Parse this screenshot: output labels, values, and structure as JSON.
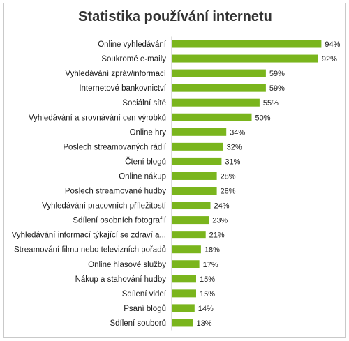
{
  "chart_data": {
    "type": "bar",
    "orientation": "horizontal",
    "title": "Statistika používání internetu",
    "categories": [
      "Online vyhledávání",
      "Soukromé e-maily",
      "Vyhledávání zpráv/informací",
      "Internetové bankovnictví",
      "Sociální sítě",
      "Vyhledávání a srovnávání cen výrobků",
      "Online hry",
      "Poslech streamovaných rádií",
      "Čtení blogů",
      "Online nákup",
      "Poslech streamované hudby",
      "Vyhledávání pracovních příležitostí",
      "Sdílení osobních fotografií",
      "Vyhledávání informací týkající se zdraví a...",
      "Streamování filmu nebo televizních pořadů",
      "Online hlasové služby",
      "Nákup a stahování hudby",
      "Sdílení videí",
      "Psaní blogů",
      "Sdílení souborů"
    ],
    "values": [
      94,
      92,
      59,
      59,
      55,
      50,
      34,
      32,
      31,
      28,
      28,
      24,
      23,
      21,
      18,
      17,
      15,
      15,
      14,
      13
    ],
    "value_labels": [
      "94%",
      "92%",
      "59%",
      "59%",
      "55%",
      "50%",
      "34%",
      "32%",
      "31%",
      "28%",
      "28%",
      "24%",
      "23%",
      "21%",
      "18%",
      "17%",
      "15%",
      "15%",
      "14%",
      "13%"
    ],
    "xlim": [
      0,
      100
    ],
    "grid": false,
    "legend": "none",
    "bar_color": "#7ab51d"
  }
}
